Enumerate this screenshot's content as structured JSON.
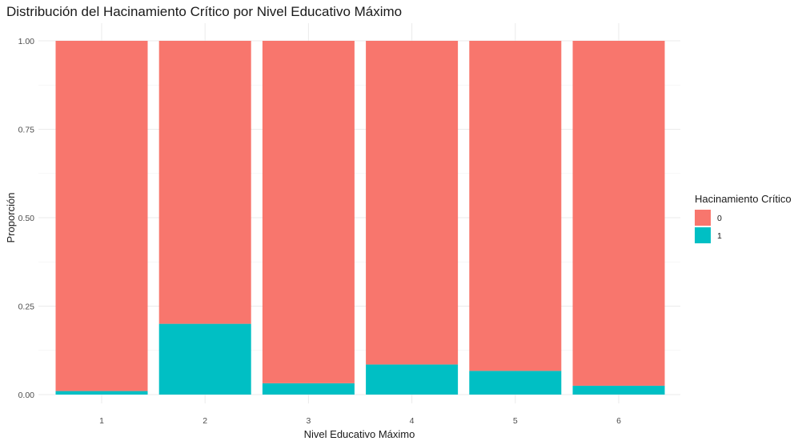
{
  "chart_data": {
    "type": "bar",
    "stacked": true,
    "title": "Distribución del Hacinamiento Crítico por Nivel Educativo Máximo",
    "xlabel": "Nivel Educativo Máximo",
    "ylabel": "Proporción",
    "categories": [
      "1",
      "2",
      "3",
      "4",
      "5",
      "6"
    ],
    "ylim": [
      0,
      1
    ],
    "yticks": [
      0.0,
      0.25,
      0.5,
      0.75,
      1.0
    ],
    "ytick_labels": [
      "0.00",
      "0.25",
      "0.50",
      "0.75",
      "1.00"
    ],
    "grid": true,
    "legend": {
      "title": "Hacinamiento Crítico",
      "position": "right"
    },
    "series": [
      {
        "name": "0",
        "color": "#F8766D",
        "values": [
          0.99,
          0.8,
          0.968,
          0.915,
          0.933,
          0.975
        ]
      },
      {
        "name": "1",
        "color": "#00BFC4",
        "values": [
          0.01,
          0.2,
          0.032,
          0.085,
          0.067,
          0.025
        ]
      }
    ]
  }
}
